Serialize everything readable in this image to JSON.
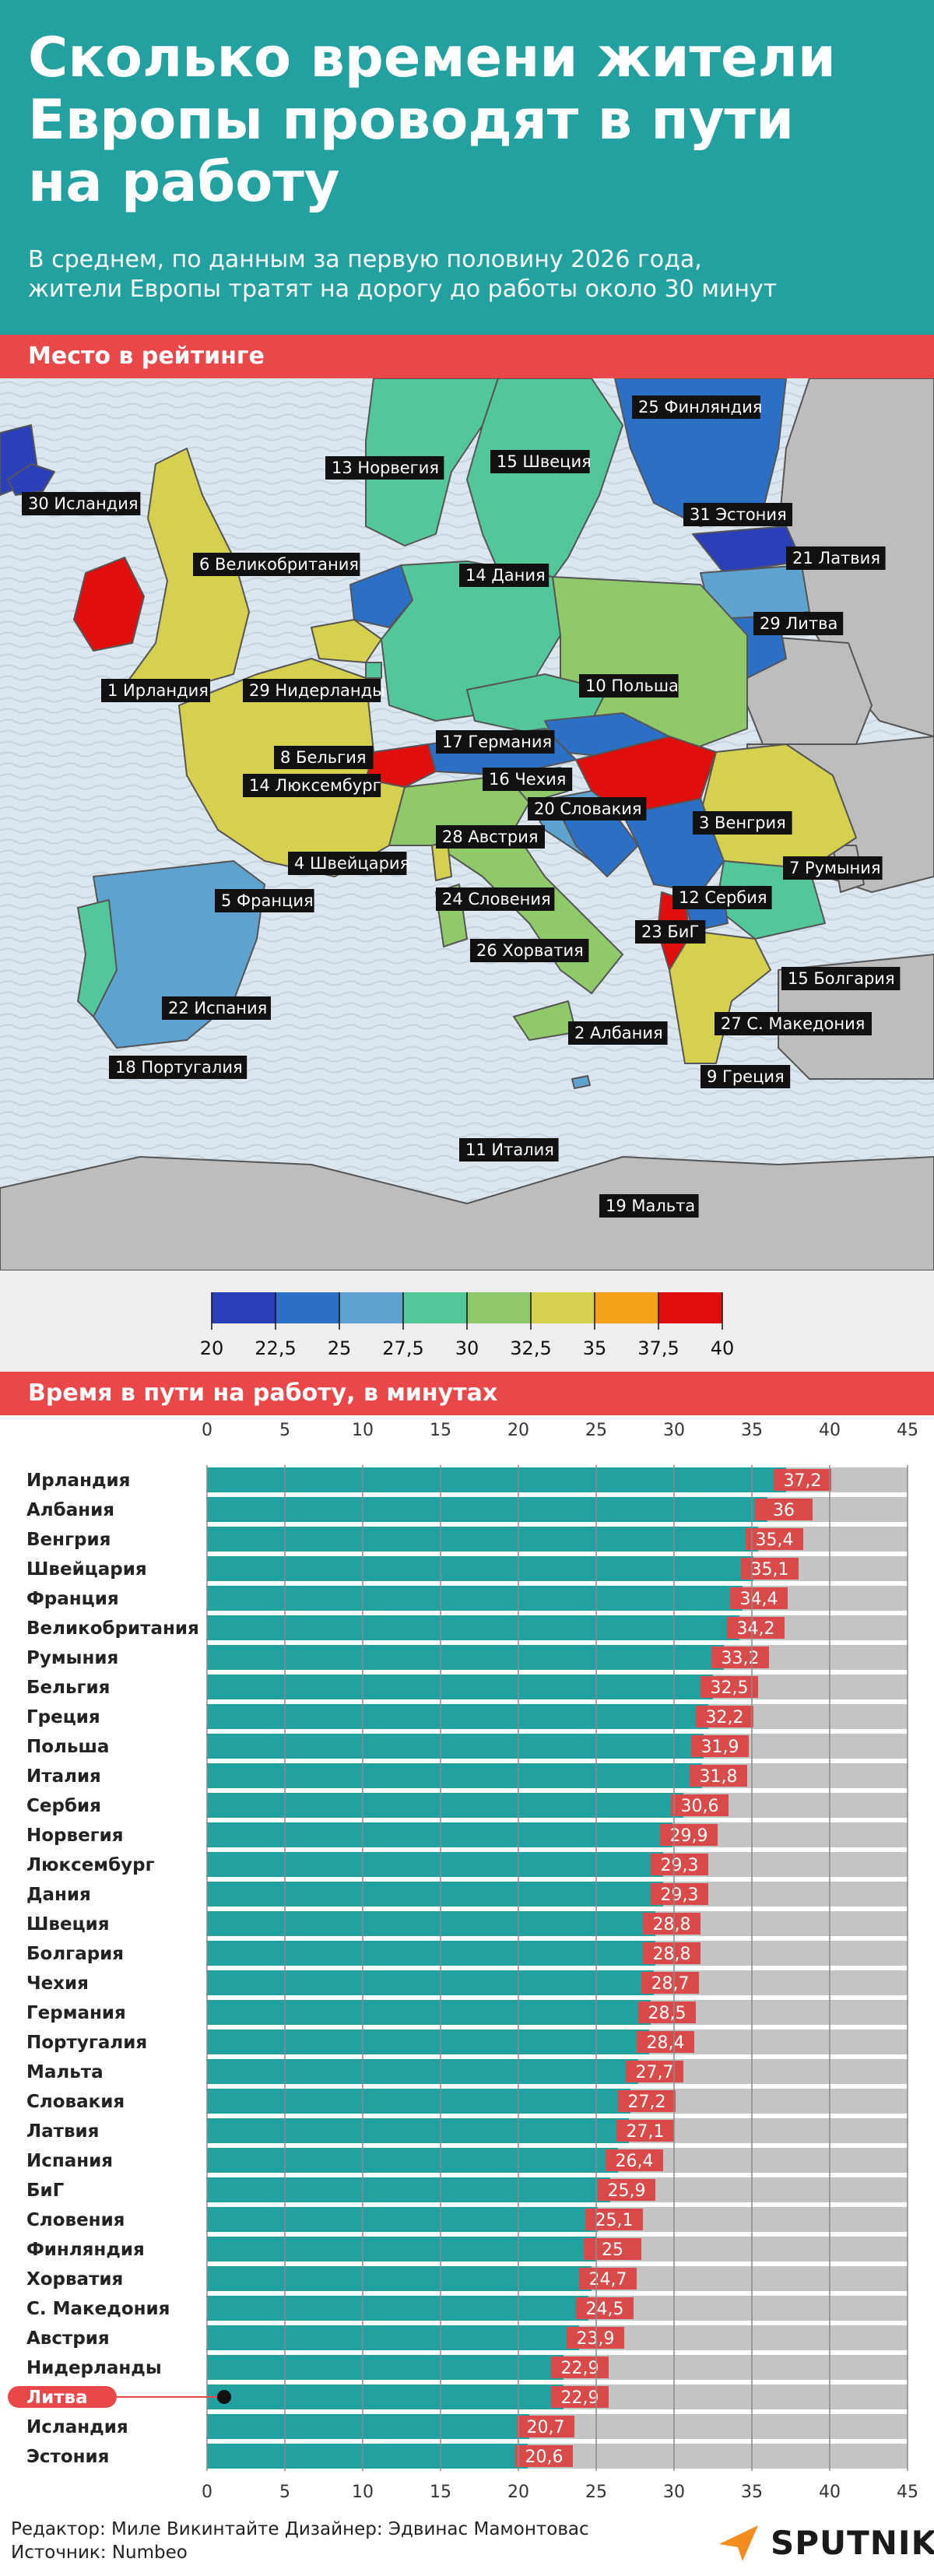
{
  "header": {
    "title": "Сколько времени жители\nЕвропы проводят в пути\nна работу",
    "subtitle": "В среднем, по данным за первую половину 2026 года,\nжители Европы тратят на дорогу до работы около 30 минут"
  },
  "map_section": {
    "heading": "Место в рейтинге",
    "labels": [
      {
        "id": "finland",
        "text": "25 Финляндия"
      },
      {
        "id": "norway",
        "text": "13 Норвегия"
      },
      {
        "id": "sweden",
        "text": "15 Швеция"
      },
      {
        "id": "iceland",
        "text": "30 Исландия"
      },
      {
        "id": "estonia",
        "text": "31 Эстония"
      },
      {
        "id": "uk",
        "text": "6 Великобритания"
      },
      {
        "id": "denmark",
        "text": "14 Дания"
      },
      {
        "id": "latvia",
        "text": "21 Латвия"
      },
      {
        "id": "lithuania",
        "text": "29 Литва"
      },
      {
        "id": "ireland",
        "text": "1 Ирландия"
      },
      {
        "id": "netherlands",
        "text": "29 Нидерланды"
      },
      {
        "id": "poland",
        "text": "10 Польша"
      },
      {
        "id": "germany",
        "text": "17 Германия"
      },
      {
        "id": "belgium",
        "text": "8 Бельгия"
      },
      {
        "id": "czechia",
        "text": "16 Чехия"
      },
      {
        "id": "luxembourg",
        "text": "14 Люксембург"
      },
      {
        "id": "slovakia",
        "text": "20 Словакия"
      },
      {
        "id": "hungary",
        "text": "3 Венгрия"
      },
      {
        "id": "austria",
        "text": "28 Австрия"
      },
      {
        "id": "switzerland",
        "text": "4 Швейцария"
      },
      {
        "id": "romania",
        "text": "7 Румыния"
      },
      {
        "id": "france",
        "text": "5 Франция"
      },
      {
        "id": "slovenia",
        "text": "24 Словения"
      },
      {
        "id": "serbia",
        "text": "12 Сербия"
      },
      {
        "id": "croatia",
        "text": "26 Хорватия"
      },
      {
        "id": "bih",
        "text": "23 БиГ"
      },
      {
        "id": "bulgaria",
        "text": "15 Болгария"
      },
      {
        "id": "spain",
        "text": "22 Испания"
      },
      {
        "id": "north_macedonia",
        "text": "27 С. Македония"
      },
      {
        "id": "albania",
        "text": "2 Албания"
      },
      {
        "id": "portugal",
        "text": "18 Португалия"
      },
      {
        "id": "greece",
        "text": "9 Греция"
      },
      {
        "id": "italy",
        "text": "11 Италия"
      },
      {
        "id": "malta",
        "text": "19 Мальта"
      }
    ],
    "colors": {
      "sea": "#dbe6ef",
      "land_other": "#bdbdbd",
      "border": "#555555"
    }
  },
  "legend": {
    "ticks": [
      "20",
      "22,5",
      "25",
      "27,5",
      "30",
      "32,5",
      "35",
      "37,5",
      "40"
    ],
    "colors": [
      "#2a3fb8",
      "#2c6fc6",
      "#5ea3cf",
      "#52c79a",
      "#8fc96a",
      "#d6d04f",
      "#f3a21a",
      "#e10e0e"
    ]
  },
  "chart_section": {
    "heading": "Время в пути на работу, в минутах",
    "highlight_country": "Литва"
  },
  "chart_data": {
    "type": "bar",
    "orientation": "horizontal",
    "title": "Время в пути на работу, в минутах",
    "xlim": [
      0,
      45
    ],
    "x_ticks": [
      0,
      5,
      10,
      15,
      20,
      25,
      30,
      35,
      40,
      45
    ],
    "grid": true,
    "categories": [
      "Ирландия",
      "Албания",
      "Венгрия",
      "Швейцария",
      "Франция",
      "Великобритания",
      "Румыния",
      "Бельгия",
      "Греция",
      "Польша",
      "Италия",
      "Сербия",
      "Норвегия",
      "Люксембург",
      "Дания",
      "Швеция",
      "Болгария",
      "Чехия",
      "Германия",
      "Португалия",
      "Мальта",
      "Словакия",
      "Латвия",
      "Испания",
      "БиГ",
      "Словения",
      "Финляндия",
      "Хорватия",
      "С. Македония",
      "Австрия",
      "Нидерланды",
      "Литва",
      "Исландия",
      "Эстония"
    ],
    "values": [
      37.2,
      36,
      35.4,
      35.1,
      34.4,
      34.2,
      33.2,
      32.5,
      32.2,
      31.9,
      31.8,
      30.6,
      29.9,
      29.3,
      29.3,
      28.8,
      28.8,
      28.7,
      28.5,
      28.4,
      27.7,
      27.2,
      27.1,
      26.4,
      25.9,
      25.1,
      25,
      24.7,
      24.5,
      23.9,
      22.9,
      22.9,
      20.7,
      20.6
    ],
    "value_labels": [
      "37,2",
      "36",
      "35,4",
      "35,1",
      "34,4",
      "34,2",
      "33,2",
      "32,5",
      "32,2",
      "31,9",
      "31,8",
      "30,6",
      "29,9",
      "29,3",
      "29,3",
      "28,8",
      "28,8",
      "28,7",
      "28,5",
      "28,4",
      "27,7",
      "27,2",
      "27,1",
      "26,4",
      "25,9",
      "25,1",
      "25",
      "24,7",
      "24,5",
      "23,9",
      "22,9",
      "22,9",
      "20,7",
      "20,6"
    ],
    "colors": {
      "bar": "#23a0a0",
      "label_box": "#d94a4a",
      "remainder": "#c4c4c4",
      "highlight": "#e8484a"
    }
  },
  "footer": {
    "credits": "Редактор: Миле Викинтайте  Дизайнер: Эдвинас Мамонтовас\nИсточник: Numbeo",
    "logo_text": "SPUTNIK"
  }
}
